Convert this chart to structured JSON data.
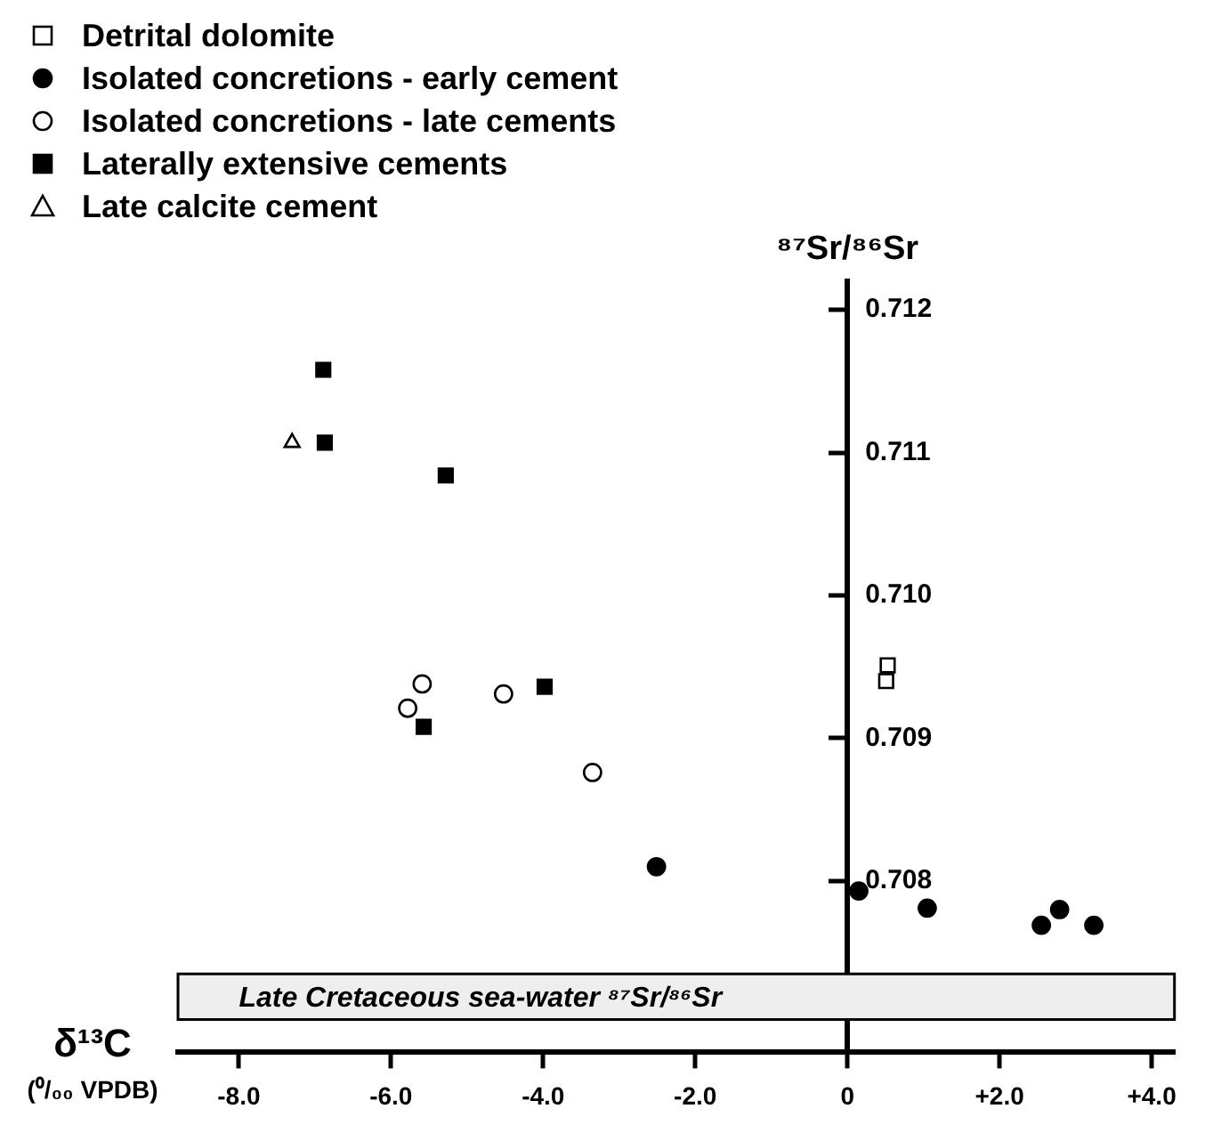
{
  "chart_data": {
    "type": "scatter",
    "xlabel": "δ¹³C (⁰/₀₀ VPDB)",
    "ylabel": "⁸⁷Sr/⁸⁶Sr",
    "xlim": [
      -8.8,
      4.3
    ],
    "ylim": [
      0.7068,
      0.7122
    ],
    "xticks": [
      {
        "value": -8,
        "label": "-8.0"
      },
      {
        "value": -6,
        "label": "-6.0"
      },
      {
        "value": -4,
        "label": "-4.0"
      },
      {
        "value": -2,
        "label": "-2.0"
      },
      0,
      {
        "value": 2,
        "label": "+2.0"
      },
      {
        "value": 4,
        "label": "+4.0"
      }
    ],
    "yticks": [
      0.708,
      0.709,
      {
        "value": 0.71,
        "label": "0.710"
      },
      0.711,
      0.712
    ],
    "legend": "top left",
    "grid": false,
    "bands": [
      {
        "axis": "y",
        "from": 0.70703,
        "to": 0.70735,
        "label": "Late Cretaceous sea-water ⁸⁷Sr/⁸⁶Sr",
        "color": "#eeeeee"
      }
    ],
    "series": [
      {
        "name": "Detrital dolomite",
        "marker": "square",
        "color": "#ffffff",
        "x": [
          0.53,
          0.51
        ],
        "values": [
          0.70951,
          0.7094
        ]
      },
      {
        "name": "Isolated concretions - early cement",
        "marker": "circle",
        "color": "#000000",
        "x": [
          -2.51,
          0.15,
          1.05,
          2.55,
          2.79,
          3.24
        ],
        "values": [
          0.7081,
          0.70793,
          0.70781,
          0.70769,
          0.7078,
          0.70769
        ]
      },
      {
        "name": "Isolated concretions - late cements",
        "marker": "circle",
        "color": "#ffffff",
        "x": [
          -5.59,
          -5.78,
          -4.52,
          -3.35
        ],
        "values": [
          0.70938,
          0.70921,
          0.70931,
          0.70876
        ]
      },
      {
        "name": "Laterally extensive cements",
        "marker": "square",
        "color": "#000000",
        "x": [
          -6.89,
          -6.87,
          -5.28,
          -3.98,
          -5.57
        ],
        "values": [
          0.71158,
          0.71107,
          0.71084,
          0.70936,
          0.70908
        ]
      },
      {
        "name": "Late calcite cement",
        "marker": "triangle",
        "color": "#ffffff",
        "x": [
          -7.3
        ],
        "values": [
          0.71107
        ]
      }
    ]
  }
}
